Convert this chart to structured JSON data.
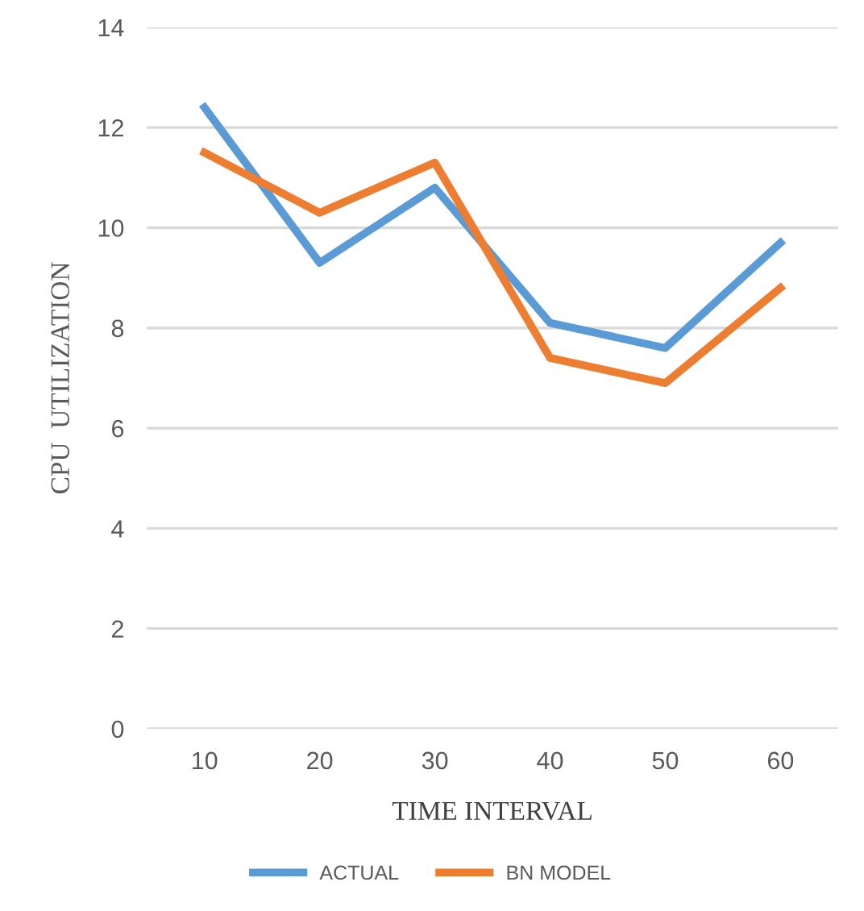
{
  "chart_data": {
    "type": "line",
    "xlabel": "TIME INTERVAL",
    "ylabel": "CPU  UTILIZATION",
    "categories": [
      "10",
      "20",
      "30",
      "40",
      "50",
      "60"
    ],
    "series": [
      {
        "name": "ACTUAL",
        "color": "#5b9bd5",
        "values": [
          12.4,
          9.3,
          10.8,
          8.1,
          7.6,
          9.7
        ]
      },
      {
        "name": "BN MODEL",
        "color": "#ed7d31",
        "values": [
          11.5,
          10.3,
          11.3,
          7.4,
          6.9,
          8.8
        ]
      }
    ],
    "ylim": [
      0,
      14
    ],
    "yticks": [
      0,
      2,
      4,
      6,
      8,
      10,
      12,
      14
    ],
    "grid": "y",
    "legend": "bottom",
    "marker": "none",
    "line_style": "solid"
  }
}
